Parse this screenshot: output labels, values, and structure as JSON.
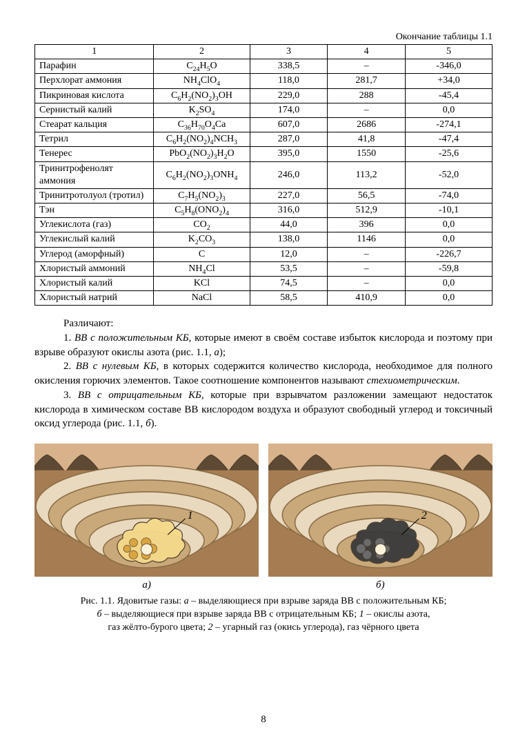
{
  "table": {
    "caption": "Окончание таблицы 1.1",
    "header": [
      "1",
      "2",
      "3",
      "4",
      "5"
    ],
    "rows": [
      {
        "name": "Парафин",
        "formula": "C<sub>24</sub>H<sub>5</sub>O",
        "c3": "338,5",
        "c4": "–",
        "c5": "-346,0"
      },
      {
        "name": "Перхлорат аммония",
        "formula": "NH<sub>4</sub>ClO<sub>4</sub>",
        "c3": "118,0",
        "c4": "281,7",
        "c5": "+34,0"
      },
      {
        "name": "Пикриновая кислота",
        "formula": "C<sub>6</sub>H<sub>2</sub>(NO<sub>2</sub>)<sub>3</sub>OH",
        "c3": "229,0",
        "c4": "288",
        "c5": "-45,4"
      },
      {
        "name": "Сернистый калий",
        "formula": "K<sub>2</sub>SO<sub>4</sub>",
        "c3": "174,0",
        "c4": "–",
        "c5": "0,0"
      },
      {
        "name": "Стеарат кальция",
        "formula": "C<sub>36</sub>H<sub>70</sub>O<sub>4</sub>Ca",
        "c3": "607,0",
        "c4": "2686",
        "c5": "-274,1"
      },
      {
        "name": "Тетрил",
        "formula": "C<sub>6</sub>H<sub>2</sub>(NO<sub>2</sub>)<sub>4</sub>NCH<sub>3</sub>",
        "c3": "287,0",
        "c4": "41,8",
        "c5": "-47,4"
      },
      {
        "name": "Тенерес",
        "formula": "PbO<sub>2</sub>(NO<sub>2</sub>)<sub>3</sub>H<sub>2</sub>O",
        "c3": "395,0",
        "c4": "1550",
        "c5": "-25,6"
      },
      {
        "name": "Тринитрофенолят аммония",
        "formula": "C<sub>6</sub>H<sub>2</sub>(NO<sub>2</sub>)<sub>3</sub>ONH<sub>4</sub>",
        "c3": "246,0",
        "c4": "113,2",
        "c5": "-52,0"
      },
      {
        "name": "Тринитротолуол (тротил)",
        "formula": "C<sub>7</sub>H<sub>5</sub>(NO<sub>2</sub>)<sub>3</sub>",
        "c3": "227,0",
        "c4": "56,5",
        "c5": "-74,0"
      },
      {
        "name": "Тэн",
        "formula": "C<sub>5</sub>H<sub>8</sub>(ONO<sub>2</sub>)<sub>4</sub>",
        "c3": "316,0",
        "c4": "512,9",
        "c5": "-10,1"
      },
      {
        "name": "Углекислота (газ)",
        "formula": "CO<sub>2</sub>",
        "c3": "44,0",
        "c4": "396",
        "c5": "0,0"
      },
      {
        "name": "Углекислый калий",
        "formula": "K<sub>2</sub>CO<sub>3</sub>",
        "c3": "138,0",
        "c4": "1146",
        "c5": "0,0"
      },
      {
        "name": "Углерод (аморфный)",
        "formula": "C",
        "c3": "12,0",
        "c4": "–",
        "c5": "-226,7"
      },
      {
        "name": "Хлористый аммоний",
        "formula": "NH<sub>4</sub>Cl",
        "c3": "53,5",
        "c4": "–",
        "c5": "-59,8"
      },
      {
        "name": "Хлористый калий",
        "formula": "KCl",
        "c3": "74,5",
        "c4": "–",
        "c5": "0,0"
      },
      {
        "name": "Хлористый натрий",
        "formula": "NaCl",
        "c3": "58,5",
        "c4": "410,9",
        "c5": "0,0"
      }
    ]
  },
  "text": {
    "p0": "Различают:",
    "p1_a": "1. ",
    "p1_b": "ВВ с положительным КБ",
    "p1_c": ", которые имеют в своём составе избыток кислорода и поэтому при взрыве образуют окислы азота (рис. 1.1, ",
    "p1_d": "а",
    "p1_e": ");",
    "p2_a": "2. ",
    "p2_b": "ВВ с нулевым КБ",
    "p2_c": ", в которых содержится количество кислорода, необходимое для полного окисления горючих элементов. Такое соотношение компонентов называют ",
    "p2_d": "стехиометрическим",
    "p2_e": ".",
    "p3_a": "3. ",
    "p3_b": "ВВ с отрицательным КБ",
    "p3_c": ", которые при взрывчатом разложении замещают недостаток кислорода в химическом составе ВВ кислородом воздуха и образуют свободный углерод и токсичный оксид углерода (рис. 1.1, ",
    "p3_d": "б",
    "p3_e": ")."
  },
  "figure": {
    "label_a": "а)",
    "label_b": "б)",
    "marker_1": "1",
    "marker_2": "2",
    "caption_l1": "Рис. 1.1. Ядовитые газы: ",
    "cap_a": "а",
    "cap_at": " – выделяющиеся при взрыве заряда ВВ с положительным КБ;",
    "cap_b": "б",
    "cap_bt": " – выделяющиеся при взрыве заряда ВВ с отрицательным КБ; ",
    "cap_1": "1",
    "cap_1t": " – окислы азота,",
    "cap_l3a": "газ жёлто-бурого цвета; ",
    "cap_2": "2",
    "cap_2t": " – угарный газ (окись углерода), газ чёрного цвета",
    "colors": {
      "border": "#4a3b2a",
      "sky": "#d8b28a",
      "ground": "#a67d52",
      "terrace_light": "#e8d9bf",
      "terrace_dark": "#c9a97a",
      "terrace_edge": "#8a6b44",
      "pile": "#5e4a34",
      "blast_a_fill": "#f5d98a",
      "blast_a_accent": "#d9a441",
      "blast_b_fill": "#3a3a3a",
      "blast_b_accent": "#6b6b6b",
      "blast_core": "#f9f1d8"
    }
  },
  "page_number": "8"
}
